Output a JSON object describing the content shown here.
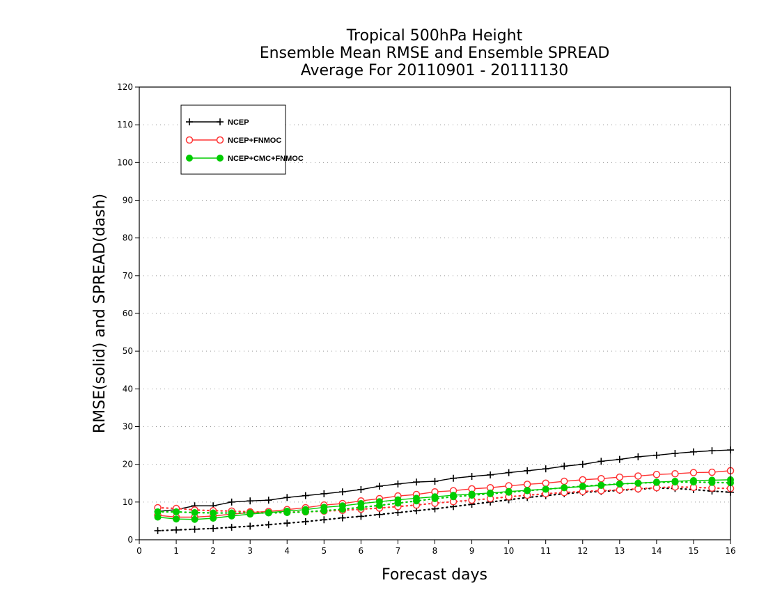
{
  "chart_data": {
    "type": "line",
    "title_lines": [
      "Tropical 500hPa Height",
      "Ensemble Mean RMSE and Ensemble SPREAD",
      "Average For 20110901 - 20111130"
    ],
    "xlabel": "Forecast days",
    "ylabel": "RMSE(solid) and SPREAD(dash)",
    "xlim": [
      0,
      16
    ],
    "ylim": [
      0,
      120
    ],
    "x_ticks": [
      0,
      1,
      2,
      3,
      4,
      5,
      6,
      7,
      8,
      9,
      10,
      11,
      12,
      13,
      14,
      15,
      16
    ],
    "y_ticks": [
      0,
      10,
      20,
      30,
      40,
      50,
      60,
      70,
      80,
      90,
      100,
      110,
      120
    ],
    "grid": "horizontal-dotted",
    "legend_position": "top-left",
    "x": [
      0.5,
      1.0,
      1.5,
      2.0,
      2.5,
      3.0,
      3.5,
      4.0,
      4.5,
      5.0,
      5.5,
      6.0,
      6.5,
      7.0,
      7.5,
      8.0,
      8.5,
      9.0,
      9.5,
      10.0,
      10.5,
      11.0,
      11.5,
      12.0,
      12.5,
      13.0,
      13.5,
      14.0,
      14.5,
      15.0,
      15.5,
      16.0
    ],
    "series": [
      {
        "name": "NCEP",
        "color": "#000000",
        "marker": "plus",
        "rmse": [
          7.5,
          8.0,
          9.0,
          9.0,
          10.0,
          10.3,
          10.5,
          11.2,
          11.7,
          12.2,
          12.7,
          13.3,
          14.2,
          14.8,
          15.3,
          15.5,
          16.3,
          16.8,
          17.2,
          17.8,
          18.3,
          18.8,
          19.5,
          20.0,
          20.8,
          21.3,
          22.0,
          22.4,
          22.9,
          23.3,
          23.6,
          23.8
        ],
        "spread": [
          2.4,
          2.6,
          2.8,
          3.0,
          3.3,
          3.6,
          4.0,
          4.4,
          4.8,
          5.3,
          5.8,
          6.2,
          6.7,
          7.2,
          7.7,
          8.2,
          8.8,
          9.4,
          10.0,
          10.6,
          11.2,
          11.7,
          12.2,
          12.6,
          12.8,
          13.1,
          13.4,
          13.7,
          13.6,
          13.3,
          12.9,
          12.6
        ]
      },
      {
        "name": "NCEP+FNMOC",
        "color": "#ff3333",
        "marker": "open-circle",
        "rmse": [
          6.5,
          6.0,
          6.0,
          6.3,
          6.8,
          7.2,
          7.5,
          8.0,
          8.5,
          9.2,
          9.6,
          10.3,
          10.9,
          11.6,
          12.0,
          12.7,
          13.0,
          13.5,
          13.8,
          14.3,
          14.7,
          15.0,
          15.5,
          15.9,
          16.2,
          16.6,
          16.9,
          17.3,
          17.5,
          17.8,
          17.9,
          18.3
        ],
        "spread": [
          8.5,
          8.3,
          7.9,
          7.7,
          7.6,
          7.4,
          7.3,
          7.3,
          7.4,
          7.6,
          7.8,
          8.1,
          8.4,
          8.8,
          9.2,
          9.7,
          10.1,
          10.5,
          10.9,
          11.4,
          11.8,
          12.2,
          12.5,
          12.8,
          13.0,
          13.2,
          13.5,
          13.8,
          14.0,
          13.9,
          13.7,
          13.6
        ]
      },
      {
        "name": "NCEP+CMC+FNMOC",
        "color": "#00cc00",
        "marker": "filled-circle",
        "rmse": [
          6.0,
          5.5,
          5.4,
          5.7,
          6.3,
          6.8,
          7.2,
          7.6,
          8.0,
          8.6,
          9.0,
          9.6,
          10.1,
          10.6,
          11.0,
          11.4,
          11.8,
          12.1,
          12.4,
          12.8,
          13.1,
          13.4,
          13.8,
          14.1,
          14.4,
          14.8,
          15.0,
          15.3,
          15.5,
          15.7,
          15.8,
          15.9
        ],
        "spread": [
          7.4,
          7.4,
          7.2,
          7.1,
          7.1,
          7.1,
          7.1,
          7.2,
          7.4,
          7.7,
          8.1,
          8.6,
          9.1,
          9.7,
          10.3,
          10.9,
          11.4,
          11.8,
          12.2,
          12.6,
          13.0,
          13.4,
          13.8,
          14.2,
          14.5,
          14.8,
          15.0,
          15.2,
          15.3,
          15.3,
          15.2,
          15.1
        ]
      }
    ]
  }
}
